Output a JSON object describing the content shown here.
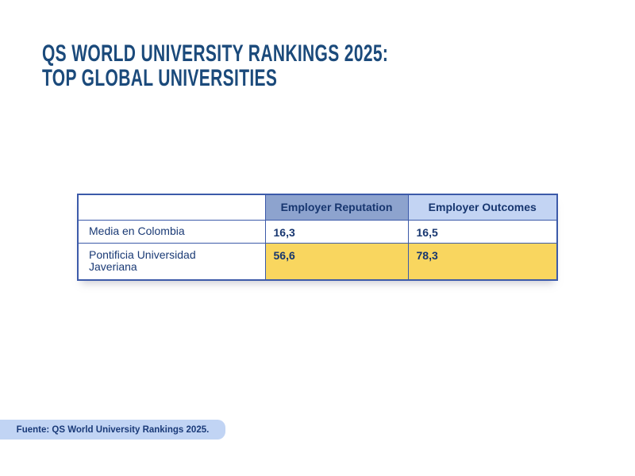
{
  "slide": {
    "title": {
      "line1": "QS WORLD UNIVERSITY RANKINGS 2025:",
      "line2": "TOP GLOBAL UNIVERSITIES"
    },
    "source": "Fuente: QS World University Rankings 2025."
  },
  "table": {
    "columns": [
      "",
      "Employer Reputation",
      "Employer Outcomes"
    ],
    "rows": [
      {
        "label": "Media en Colombia",
        "values": [
          "16,3",
          "16,5"
        ],
        "highlighted": false
      },
      {
        "label": "Pontificia Universidad Javeriana",
        "values": [
          "56,6",
          "78,3"
        ],
        "highlighted": true
      }
    ]
  },
  "colors": {
    "title_text": "#1B4A7B",
    "table_border": "#3C5AA9",
    "header_reputation_bg": "#8DA3CE",
    "header_outcomes_bg": "#C3D4F3",
    "highlight_yellow": "#F9D65F",
    "source_badge_bg": "#C1D4F4",
    "body_text": "#17366F"
  }
}
